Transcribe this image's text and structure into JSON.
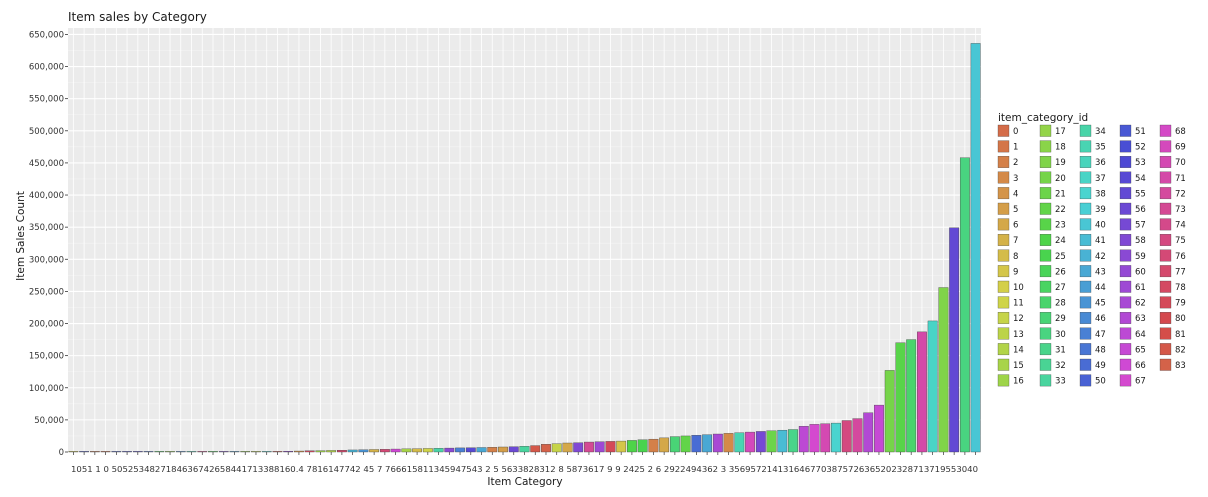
{
  "chart_data": {
    "type": "bar",
    "title": "Item sales by Category",
    "xlabel": "Item Category",
    "ylabel": "Item Sales Count",
    "ylim": [
      0,
      660000
    ],
    "yticks": [
      0,
      50000,
      100000,
      150000,
      200000,
      250000,
      300000,
      350000,
      400000,
      450000,
      500000,
      550000,
      600000,
      650000
    ],
    "ytick_labels": [
      "0",
      "50,000",
      "100,000",
      "150,000",
      "200,000",
      "250,000",
      "300,000",
      "350,000",
      "400,000",
      "450,000",
      "500,000",
      "550,000",
      "600,000",
      "650,000"
    ],
    "grid": true,
    "legend": {
      "title": "item_category_id",
      "placement": "right",
      "columns": [
        [
          "0",
          "1",
          "2",
          "3",
          "4",
          "5",
          "6",
          "7",
          "8",
          "9",
          "10",
          "11",
          "12",
          "13",
          "14",
          "15",
          "16"
        ],
        [
          "17",
          "18",
          "19",
          "20",
          "21",
          "22",
          "23",
          "24",
          "25",
          "26",
          "27",
          "28",
          "29",
          "30",
          "31",
          "32",
          "33"
        ],
        [
          "34",
          "35",
          "36",
          "37",
          "38",
          "39",
          "40",
          "41",
          "42",
          "43",
          "44",
          "45",
          "46",
          "47",
          "48",
          "49",
          "50"
        ],
        [
          "51",
          "52",
          "53",
          "54",
          "55",
          "56",
          "57",
          "58",
          "59",
          "60",
          "61",
          "62",
          "63",
          "64",
          "65",
          "66",
          "67"
        ],
        [
          "68",
          "69",
          "70",
          "71",
          "72",
          "73",
          "74",
          "75",
          "76",
          "77",
          "78",
          "79",
          "80",
          "81",
          "82",
          "83"
        ]
      ]
    },
    "x_tick_text": "1051 1  0  5052534827184636742658441713388160.4  7816147742 45  7  766615811345947543 2  5  5633828312  8  5873617 9  9  2425 2   6  2922494362  3  3569572141316467703875726365202328713719553040",
    "bars": [
      {
        "id": 10,
        "value": 1
      },
      {
        "id": 51,
        "value": 1
      },
      {
        "id": 1,
        "value": 2
      },
      {
        "id": 0,
        "value": 3
      },
      {
        "id": 50,
        "value": 5
      },
      {
        "id": 52,
        "value": 10
      },
      {
        "id": 53,
        "value": 15
      },
      {
        "id": 48,
        "value": 20
      },
      {
        "id": 27,
        "value": 25
      },
      {
        "id": 18,
        "value": 30
      },
      {
        "id": 46,
        "value": 40
      },
      {
        "id": 36,
        "value": 60
      },
      {
        "id": 74,
        "value": 80
      },
      {
        "id": 26,
        "value": 100
      },
      {
        "id": 58,
        "value": 130
      },
      {
        "id": 44,
        "value": 170
      },
      {
        "id": 17,
        "value": 200
      },
      {
        "id": 13,
        "value": 400
      },
      {
        "id": 38,
        "value": 600
      },
      {
        "id": 81,
        "value": 900
      },
      {
        "id": 60,
        "value": 1200
      },
      {
        "id": 4,
        "value": 1500
      },
      {
        "id": 78,
        "value": 1900
      },
      {
        "id": 16,
        "value": 2100
      },
      {
        "id": 14,
        "value": 2400
      },
      {
        "id": 77,
        "value": 2800
      },
      {
        "id": 42,
        "value": 3200
      },
      {
        "id": 45,
        "value": 3500
      },
      {
        "id": 7,
        "value": 3900
      },
      {
        "id": 76,
        "value": 4200
      },
      {
        "id": 66,
        "value": 4600
      },
      {
        "id": 15,
        "value": 4900
      },
      {
        "id": 8,
        "value": 5200
      },
      {
        "id": 11,
        "value": 5500
      },
      {
        "id": 34,
        "value": 5800
      },
      {
        "id": 59,
        "value": 6100
      },
      {
        "id": 47,
        "value": 6400
      },
      {
        "id": 54,
        "value": 6700
      },
      {
        "id": 43,
        "value": 7000
      },
      {
        "id": 2,
        "value": 7400
      },
      {
        "id": 5,
        "value": 7800
      },
      {
        "id": 56,
        "value": 8300
      },
      {
        "id": 33,
        "value": 9000
      },
      {
        "id": 82,
        "value": 10000
      },
      {
        "id": 83,
        "value": 12000
      },
      {
        "id": 12,
        "value": 13000
      },
      {
        "id": 6,
        "value": 14000
      },
      {
        "id": 58,
        "value": 14500
      },
      {
        "id": 73,
        "value": 15500
      },
      {
        "id": 61,
        "value": 16000
      },
      {
        "id": 79,
        "value": 16500
      },
      {
        "id": 9,
        "value": 17000
      },
      {
        "id": 24,
        "value": 18000
      },
      {
        "id": 25,
        "value": 19000
      },
      {
        "id": 2,
        "value": 20000
      },
      {
        "id": 6,
        "value": 22000
      },
      {
        "id": 29,
        "value": 24000
      },
      {
        "id": 22,
        "value": 25000
      },
      {
        "id": 49,
        "value": 26000
      },
      {
        "id": 43,
        "value": 27000
      },
      {
        "id": 62,
        "value": 28000
      },
      {
        "id": 3,
        "value": 29000
      },
      {
        "id": 35,
        "value": 30000
      },
      {
        "id": 69,
        "value": 31000
      },
      {
        "id": 57,
        "value": 32000
      },
      {
        "id": 21,
        "value": 33000
      },
      {
        "id": 41,
        "value": 34000
      },
      {
        "id": 31,
        "value": 35000
      },
      {
        "id": 64,
        "value": 40000
      },
      {
        "id": 67,
        "value": 43000
      },
      {
        "id": 70,
        "value": 44000
      },
      {
        "id": 38,
        "value": 45000
      },
      {
        "id": 75,
        "value": 49000
      },
      {
        "id": 72,
        "value": 52000
      },
      {
        "id": 63,
        "value": 61000
      },
      {
        "id": 65,
        "value": 73000
      },
      {
        "id": 20,
        "value": 127000
      },
      {
        "id": 23,
        "value": 170000
      },
      {
        "id": 28,
        "value": 175000
      },
      {
        "id": 71,
        "value": 187000
      },
      {
        "id": 37,
        "value": 204000
      },
      {
        "id": 19,
        "value": 256000
      },
      {
        "id": 55,
        "value": 349000
      },
      {
        "id": 30,
        "value": 458000
      },
      {
        "id": 40,
        "value": 636000
      }
    ]
  }
}
